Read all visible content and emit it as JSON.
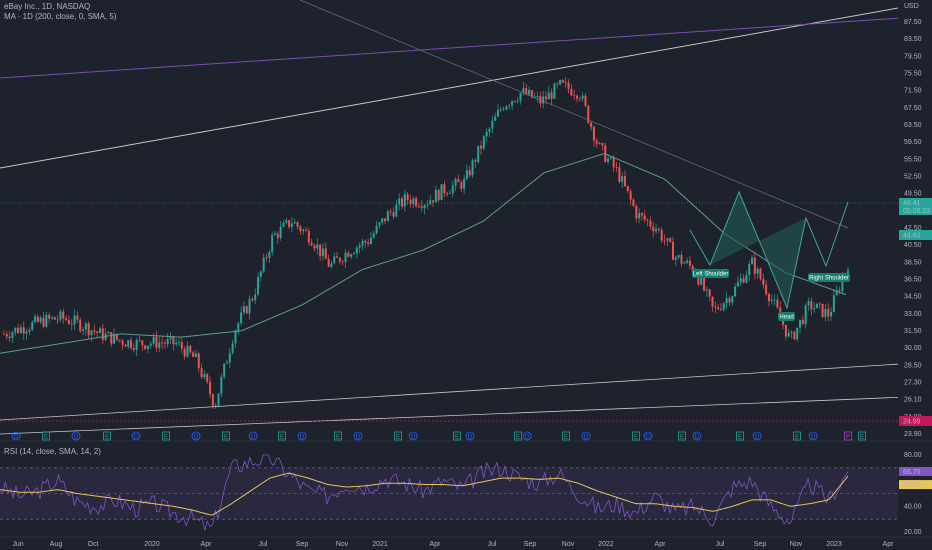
{
  "header": {
    "symbol_line": "eBay Inc., 1D, NASDAQ",
    "ma_line": "MA · 1D (200, close, 0, SMA, 5)",
    "rsi_line": "RSI (14, close, SMA, 14, 2)"
  },
  "price_axis": {
    "currency": "USD",
    "ticks": [
      "87.50",
      "83.50",
      "79.50",
      "75.50",
      "71.50",
      "67.50",
      "63.50",
      "59.50",
      "55.50",
      "52.50",
      "49.50",
      "46.50",
      "42.50",
      "40.50",
      "38.50",
      "36.50",
      "34.50",
      "33.00",
      "31.50",
      "30.00",
      "28.50",
      "27.30",
      "26.10",
      "24.90",
      "23.90"
    ],
    "last_price_label": "49.41",
    "countdown_label": "05:06:23",
    "ma_value_label": "44.63",
    "low_marker_label": "24.99"
  },
  "rsi_axis": {
    "ticks": [
      "80.00",
      "40.00",
      "20.00"
    ],
    "rsi_value_label": "66.75",
    "rsi_ma_label": "63.57"
  },
  "time_axis": {
    "labels": [
      "Jun",
      "Aug",
      "Oct",
      "2020",
      "Apr",
      "Jul",
      "Sep",
      "Nov",
      "2021",
      "Apr",
      "Jul",
      "Sep",
      "Nov",
      "2022",
      "Apr",
      "Jul",
      "Sep",
      "Nov",
      "2023",
      "Apr"
    ]
  },
  "pattern_labels": {
    "left_shoulder": "Left Shoulder",
    "head": "Head",
    "right_shoulder": "Right Shoulder"
  },
  "event_markers": {
    "earnings": "E",
    "dividend": "D",
    "split": "P"
  },
  "colors": {
    "background": "#1e222d",
    "up": "#26a69a",
    "down": "#ef5350",
    "ma": "#5e9c8c",
    "trendline": "#c8c8c8",
    "channel": "#7b4fb6",
    "rsi_line": "#7e57c2",
    "rsi_ma": "#e8c65a",
    "pattern_fill": "#1f5b52"
  },
  "chart_data": [
    {
      "type": "candlestick",
      "title": "eBay Inc., 1D, NASDAQ",
      "ylabel": "USD",
      "ylim": [
        23.9,
        90
      ],
      "series": [
        {
          "name": "eBay Inc.",
          "x": [
            "2019-05",
            "2019-06",
            "2019-07",
            "2019-08",
            "2019-09",
            "2019-10",
            "2019-11",
            "2019-12",
            "2020-01",
            "2020-02",
            "2020-03",
            "2020-04",
            "2020-05",
            "2020-06",
            "2020-07",
            "2020-08",
            "2020-09",
            "2020-10",
            "2020-11",
            "2020-12",
            "2021-01",
            "2021-02",
            "2021-03",
            "2021-04",
            "2021-05",
            "2021-06",
            "2021-07",
            "2021-08",
            "2021-09",
            "2021-10",
            "2021-11",
            "2021-12",
            "2022-01",
            "2022-02",
            "2022-03",
            "2022-04",
            "2022-05",
            "2022-06",
            "2022-07",
            "2022-08",
            "2022-09",
            "2022-10",
            "2022-11",
            "2022-12",
            "2023-01"
          ],
          "close": [
            38.5,
            39.5,
            40.5,
            41.0,
            40.0,
            38.5,
            37.5,
            37.0,
            37.2,
            37.0,
            34.5,
            27.5,
            39.0,
            44.5,
            53.5,
            56.0,
            53.5,
            49.0,
            51.5,
            53.0,
            57.0,
            59.5,
            59.0,
            61.0,
            62.0,
            68.5,
            74.0,
            76.0,
            74.5,
            77.0,
            76.0,
            67.5,
            63.5,
            57.0,
            55.0,
            50.5,
            48.5,
            42.0,
            45.0,
            49.5,
            44.0,
            37.5,
            43.0,
            41.5,
            49.4
          ]
        },
        {
          "name": "MA · 1D (200, close, 0, SMA, 5)",
          "x": [
            "2019-05",
            "2019-09",
            "2020-01",
            "2020-04",
            "2020-07",
            "2020-10",
            "2021-01",
            "2021-04",
            "2021-07",
            "2021-10",
            "2022-01",
            "2022-04",
            "2022-07",
            "2022-10",
            "2023-01"
          ],
          "values": [
            35.5,
            37.0,
            38.5,
            38.0,
            39.0,
            43.0,
            48.5,
            51.5,
            56.0,
            63.5,
            66.5,
            62.5,
            54.0,
            48.0,
            44.6
          ]
        }
      ],
      "annotations": [
        "Left Shoulder",
        "Head",
        "Right Shoulder"
      ]
    },
    {
      "type": "line",
      "title": "RSI (14, close, SMA, 14, 2)",
      "ylim": [
        20,
        80
      ],
      "series": [
        {
          "name": "RSI",
          "values": [
            55,
            48,
            52,
            60,
            44,
            40,
            45,
            38,
            42,
            35,
            30,
            22,
            70,
            75,
            78,
            65,
            52,
            48,
            58,
            55,
            62,
            58,
            52,
            60,
            54,
            66,
            70,
            62,
            58,
            66,
            50,
            38,
            42,
            35,
            48,
            36,
            40,
            30,
            55,
            60,
            40,
            28,
            58,
            45,
            66.75
          ]
        },
        {
          "name": "RSI-based MA",
          "values": [
            53,
            51,
            51,
            53,
            50,
            48,
            46,
            44,
            42,
            40,
            37,
            33,
            42,
            52,
            62,
            66,
            62,
            57,
            55,
            56,
            58,
            58,
            57,
            57,
            56,
            59,
            62,
            62,
            61,
            62,
            58,
            52,
            47,
            42,
            42,
            40,
            39,
            36,
            40,
            45,
            45,
            40,
            42,
            45,
            63.57
          ]
        }
      ]
    }
  ]
}
